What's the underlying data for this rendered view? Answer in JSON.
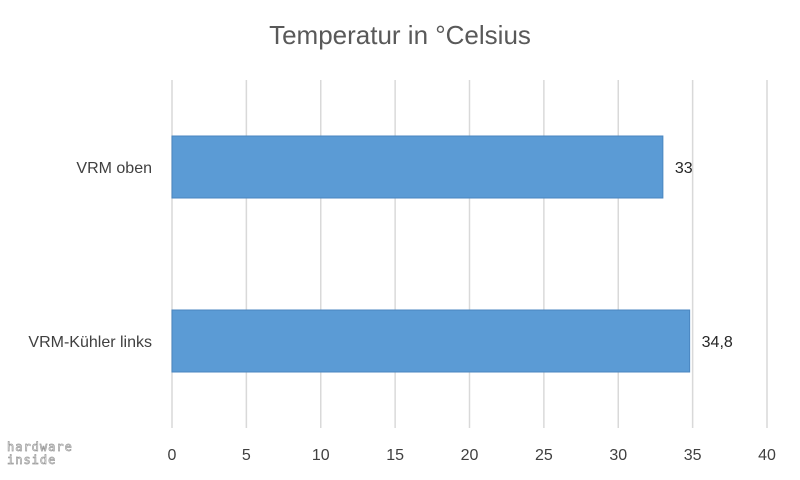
{
  "chart_data": {
    "type": "bar",
    "orientation": "horizontal",
    "title": "Temperatur in °Celsius",
    "categories": [
      "VRM oben",
      "VRM-Kühler links"
    ],
    "values": [
      33,
      34.8
    ],
    "data_labels": [
      "33",
      "34,8"
    ],
    "xlim": [
      0,
      40
    ],
    "ticks": [
      0,
      5,
      10,
      15,
      20,
      25,
      30,
      35,
      40
    ],
    "tick_labels": [
      "0",
      "5",
      "10",
      "15",
      "20",
      "25",
      "30",
      "35",
      "40"
    ],
    "grid": true,
    "legend": "none",
    "bar_color": "#5b9bd5",
    "grid_color": "#d9d9d9"
  },
  "watermark": {
    "line1": "hardware",
    "line2": "inside"
  }
}
